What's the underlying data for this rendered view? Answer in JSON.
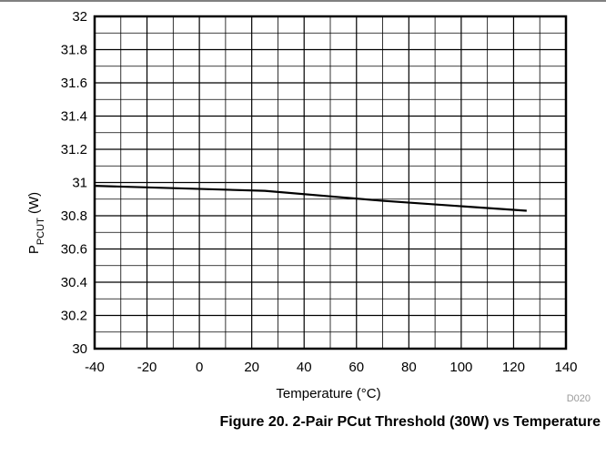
{
  "chart_data": {
    "type": "line",
    "xlabel": "Temperature (°C)",
    "ylabel_main": "P",
    "ylabel_sub": "PCUT",
    "ylabel_tail": " (W)",
    "xlim": [
      -40,
      140
    ],
    "ylim": [
      30,
      32
    ],
    "x_ticks": [
      -40,
      -20,
      0,
      20,
      40,
      60,
      80,
      100,
      120,
      140
    ],
    "x_tick_labels": [
      "-40",
      "-20",
      "0",
      "20",
      "40",
      "60",
      "80",
      "100",
      "120",
      "140"
    ],
    "y_ticks": [
      30,
      30.2,
      30.4,
      30.6,
      30.8,
      31,
      31.2,
      31.4,
      31.6,
      31.8,
      32
    ],
    "y_tick_labels": [
      "30",
      "30.2",
      "30.4",
      "30.6",
      "30.8",
      "31",
      "31.2",
      "31.4",
      "31.6",
      "31.8",
      "32"
    ],
    "grid": true,
    "series": [
      {
        "x": [
          -40,
          25,
          70,
          125
        ],
        "y": [
          30.98,
          30.95,
          30.89,
          30.83
        ],
        "color": "#000000"
      }
    ],
    "code": "D020"
  },
  "figure_caption": "Figure 20. 2-Pair PCut Threshold (30W) vs Temperature"
}
